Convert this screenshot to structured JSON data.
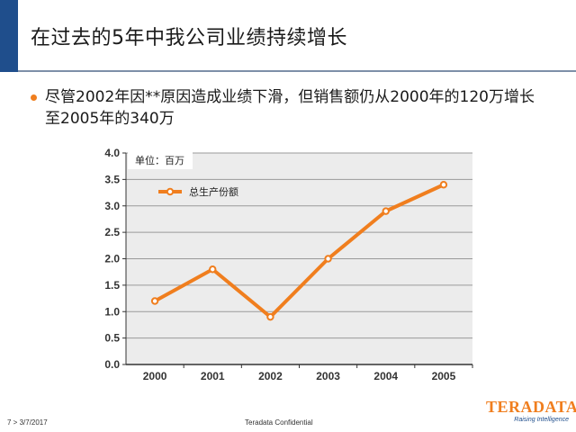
{
  "slide": {
    "title": "在过去的5年中我公司业绩持续增长",
    "bullet": "尽管2002年因**原因造成业绩下滑，但销售额仍从2000年的120万增长至2005年的340万"
  },
  "chart_data": {
    "type": "line",
    "x": [
      "2000",
      "2001",
      "2002",
      "2003",
      "2004",
      "2005"
    ],
    "series": [
      {
        "name": "总生产份额",
        "values": [
          1.2,
          1.8,
          0.9,
          2.0,
          2.9,
          3.4
        ]
      }
    ],
    "unit_label": "单位：百万",
    "ylim": [
      0.0,
      4.0
    ],
    "yticks": [
      "0.0",
      "0.5",
      "1.0",
      "1.5",
      "2.0",
      "2.5",
      "3.0",
      "3.5",
      "4.0"
    ],
    "grid": true,
    "legend": "top-left",
    "line_color": "#f07e1e"
  },
  "footer": {
    "page_info": "7  >  3/7/2017",
    "confidential": "Teradata Confidential"
  },
  "logo": {
    "name": "TERADATA",
    "tagline": "Raising Intelligence"
  },
  "colors": {
    "accent_blue": "#1f4e8c",
    "accent_orange": "#f07e1e"
  }
}
